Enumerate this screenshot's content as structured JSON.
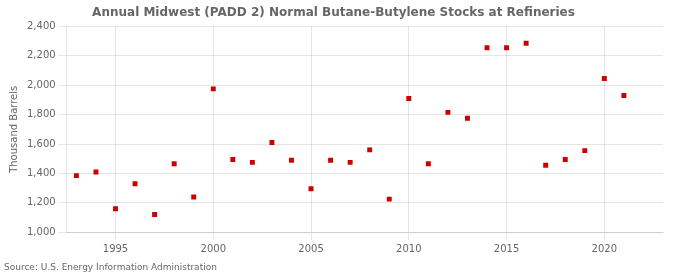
{
  "chart_data": {
    "type": "scatter",
    "title": "Annual Midwest (PADD 2) Normal Butane-Butylene Stocks at Refineries",
    "ylabel": "Thousand Barrels",
    "source": "Source: U.S. Energy Information Administration",
    "x": [
      1993,
      1994,
      1995,
      1996,
      1997,
      1998,
      1999,
      2000,
      2001,
      2002,
      2003,
      2004,
      2005,
      2006,
      2007,
      2008,
      2009,
      2010,
      2011,
      2012,
      2013,
      2014,
      2015,
      2016,
      2017,
      2018,
      2019,
      2020,
      2021
    ],
    "values": [
      1385,
      1410,
      1160,
      1330,
      1120,
      1465,
      1240,
      1975,
      1495,
      1475,
      1610,
      1490,
      1295,
      1490,
      1475,
      1560,
      1225,
      1910,
      1465,
      1815,
      1775,
      2255,
      2255,
      2285,
      1455,
      1495,
      1555,
      2045,
      1930
    ],
    "color": "#cc0000",
    "marker": "square",
    "xlim": [
      1992.5,
      2023
    ],
    "xticks": [
      1995,
      2000,
      2005,
      2010,
      2015,
      2020
    ],
    "ylim": [
      1000,
      2400
    ],
    "yticks": [
      {
        "value": 1000,
        "label": "1,000"
      },
      {
        "value": 1200,
        "label": "1,200"
      },
      {
        "value": 1400,
        "label": "1,400"
      },
      {
        "value": 1600,
        "label": "1,600"
      },
      {
        "value": 1800,
        "label": "1,800"
      },
      {
        "value": 2000,
        "label": "2,000"
      },
      {
        "value": 2200,
        "label": "2,200"
      },
      {
        "value": 2400,
        "label": "2,400"
      }
    ],
    "grid": true,
    "legend": false
  }
}
